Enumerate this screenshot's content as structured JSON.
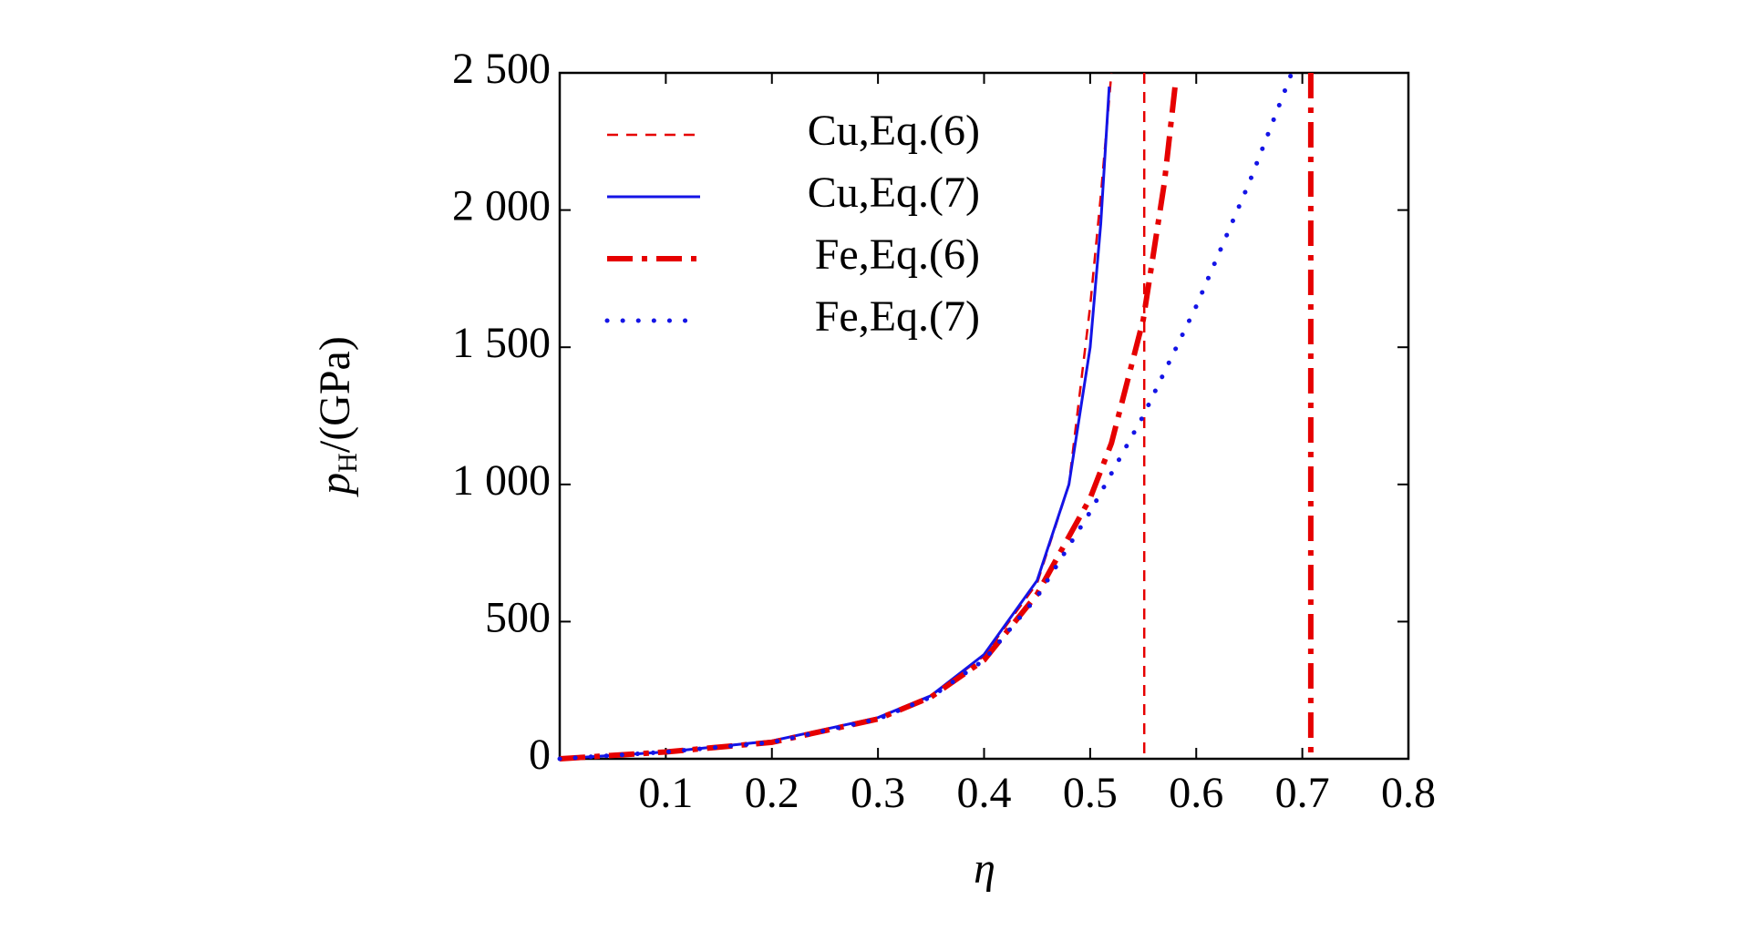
{
  "chart_data": {
    "type": "line",
    "x_label": "η",
    "y_label": {
      "symbol": "p",
      "subscript": "H",
      "unit": "/(GPa)"
    },
    "xlim": [
      0,
      0.8
    ],
    "xticks": [
      0.1,
      0.2,
      0.3,
      0.4,
      0.5,
      0.6,
      0.7,
      0.8
    ],
    "ylim": [
      0,
      2500
    ],
    "yticks": [
      0,
      500,
      {
        "value": 1000,
        "label": "1 000"
      },
      {
        "value": 1500,
        "label": "1 500"
      },
      {
        "value": 2000,
        "label": "2 000"
      },
      {
        "value": 2500,
        "label": "2 500"
      }
    ],
    "legend": "upper-left",
    "series": [
      {
        "name": "Cu,Eq.(6)",
        "color": "#e60000",
        "style": "dashed",
        "x": [
          0,
          0.1,
          0.2,
          0.3,
          0.35,
          0.4,
          0.45,
          0.48,
          0.5,
          0.51,
          0.52,
          null,
          0.551,
          0.551
        ],
        "values": [
          0,
          25,
          65,
          150,
          230,
          375,
          640,
          1000,
          1650,
          2050,
          2500,
          null,
          2500,
          0
        ]
      },
      {
        "name": "Cu,Eq.(7)",
        "color": "#1414e6",
        "style": "solid",
        "x": [
          0,
          0.1,
          0.2,
          0.3,
          0.35,
          0.4,
          0.45,
          0.48,
          0.5,
          0.51,
          0.518
        ],
        "values": [
          0,
          25,
          65,
          150,
          230,
          380,
          650,
          1000,
          1500,
          1950,
          2450
        ]
      },
      {
        "name": "Fe,Eq.(6)",
        "color": "#e60000",
        "style": "dashdot",
        "x": [
          0,
          0.1,
          0.2,
          0.3,
          0.35,
          0.4,
          0.45,
          0.5,
          0.52,
          0.55,
          0.57,
          0.58,
          null,
          0.708,
          0.708
        ],
        "values": [
          0,
          25,
          60,
          145,
          225,
          360,
          600,
          950,
          1150,
          1600,
          2100,
          2450,
          null,
          2500,
          0
        ]
      },
      {
        "name": "Fe,Eq.(7)",
        "color": "#1414e6",
        "style": "dotted",
        "x": [
          0,
          0.1,
          0.2,
          0.3,
          0.35,
          0.4,
          0.45,
          0.5,
          0.55,
          0.6,
          0.65,
          0.69
        ],
        "values": [
          0,
          25,
          60,
          145,
          225,
          360,
          590,
          900,
          1250,
          1650,
          2100,
          2500
        ]
      }
    ]
  }
}
